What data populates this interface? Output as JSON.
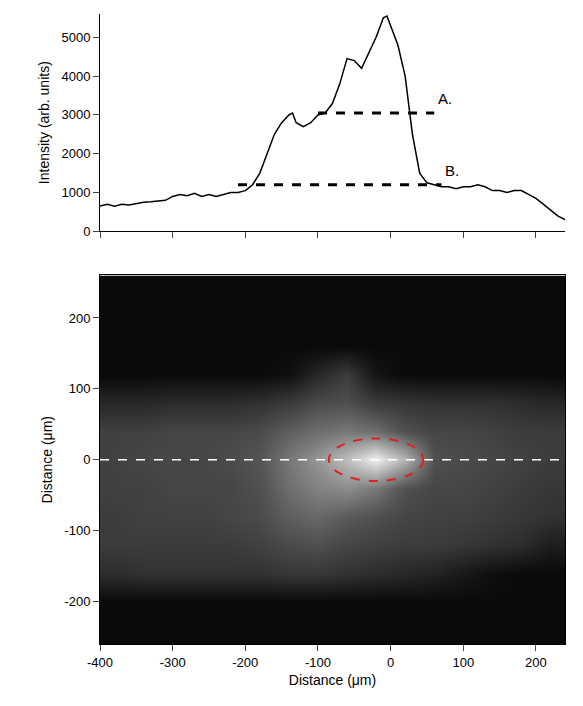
{
  "chart_data": [
    {
      "type": "line",
      "ylabel": "Intensity (arb. units)",
      "xlim": [
        -400,
        240
      ],
      "xticks": [
        -400,
        -300,
        -200,
        -100,
        0,
        100,
        200
      ],
      "ylim": [
        0,
        5600
      ],
      "yticks": [
        0,
        1000,
        2000,
        3000,
        4000,
        5000
      ],
      "tick_labels": "y",
      "x": [
        -400,
        -390,
        -380,
        -370,
        -360,
        -350,
        -340,
        -330,
        -320,
        -310,
        -300,
        -290,
        -280,
        -270,
        -260,
        -250,
        -240,
        -230,
        -220,
        -210,
        -200,
        -190,
        -180,
        -170,
        -160,
        -150,
        -140,
        -135,
        -130,
        -120,
        -110,
        -100,
        -90,
        -80,
        -70,
        -60,
        -50,
        -40,
        -30,
        -20,
        -10,
        -5,
        0,
        10,
        20,
        30,
        40,
        50,
        60,
        70,
        80,
        90,
        100,
        110,
        120,
        130,
        140,
        150,
        160,
        170,
        180,
        190,
        200,
        210,
        220,
        230,
        240
      ],
      "series": [
        {
          "color": "#000000",
          "line_style": "solid",
          "values": [
            650,
            700,
            650,
            700,
            680,
            720,
            750,
            760,
            780,
            800,
            900,
            950,
            920,
            980,
            900,
            950,
            900,
            950,
            1000,
            1000,
            1050,
            1200,
            1500,
            2000,
            2500,
            2800,
            3000,
            3050,
            2800,
            2700,
            2800,
            3000,
            3050,
            3300,
            3800,
            4450,
            4400,
            4200,
            4600,
            5000,
            5500,
            5550,
            5300,
            4800,
            4000,
            2500,
            1500,
            1250,
            1200,
            1150,
            1150,
            1100,
            1150,
            1150,
            1200,
            1150,
            1050,
            1050,
            1000,
            1050,
            1050,
            950,
            850,
            700,
            550,
            400,
            300
          ]
        },
        {
          "name": "A.",
          "color": "#000000",
          "line_style": "dash",
          "x": [
            -100,
            60
          ],
          "values": [
            3050,
            3050
          ]
        },
        {
          "name": "B.",
          "color": "#000000",
          "line_style": "dash",
          "x": [
            -210,
            70
          ],
          "values": [
            1200,
            1200
          ]
        }
      ]
    },
    {
      "type": "heatmap",
      "xlabel": "Distance (μm)",
      "ylabel": "Distance (μm)",
      "color": "gray",
      "xlim": [
        -400,
        240
      ],
      "xticks": [
        -400,
        -300,
        -200,
        -100,
        0,
        100,
        200
      ],
      "ylim": [
        -260,
        260
      ],
      "yticks": [
        -200,
        -100,
        0,
        100,
        200
      ],
      "zlim": [
        0,
        255
      ],
      "x": [
        -380,
        -340,
        -300,
        -260,
        -220,
        -180,
        -140,
        -100,
        -60,
        -20,
        20,
        60,
        100,
        140,
        180,
        220
      ],
      "y": [
        -240,
        -200,
        -160,
        -120,
        -80,
        -40,
        0,
        40,
        80,
        120,
        160,
        200,
        240
      ],
      "cells": [
        [
          10,
          10,
          10,
          10,
          10,
          10,
          10,
          10,
          10,
          10,
          10,
          10,
          10,
          10,
          10,
          10
        ],
        [
          10,
          10,
          10,
          10,
          10,
          10,
          10,
          10,
          10,
          10,
          10,
          10,
          10,
          10,
          10,
          10
        ],
        [
          45,
          50,
          50,
          50,
          50,
          50,
          55,
          55,
          50,
          45,
          40,
          35,
          25,
          15,
          10,
          10
        ],
        [
          60,
          60,
          60,
          60,
          60,
          65,
          75,
          80,
          70,
          65,
          60,
          60,
          55,
          50,
          45,
          30
        ],
        [
          60,
          65,
          65,
          65,
          70,
          75,
          95,
          105,
          90,
          80,
          70,
          65,
          65,
          60,
          55,
          50
        ],
        [
          65,
          65,
          70,
          70,
          70,
          80,
          110,
          130,
          140,
          120,
          80,
          70,
          70,
          65,
          60,
          55
        ],
        [
          65,
          70,
          70,
          70,
          75,
          85,
          120,
          150,
          190,
          240,
          180,
          80,
          75,
          70,
          65,
          60
        ],
        [
          65,
          65,
          70,
          70,
          70,
          75,
          95,
          110,
          120,
          110,
          80,
          70,
          70,
          65,
          60,
          60
        ],
        [
          40,
          40,
          45,
          45,
          45,
          50,
          60,
          75,
          80,
          60,
          55,
          50,
          50,
          50,
          45,
          40
        ],
        [
          10,
          10,
          10,
          10,
          10,
          10,
          15,
          40,
          60,
          20,
          10,
          10,
          10,
          10,
          10,
          10
        ],
        [
          10,
          10,
          10,
          10,
          10,
          10,
          10,
          10,
          10,
          10,
          10,
          10,
          10,
          10,
          10,
          10
        ],
        [
          10,
          10,
          10,
          10,
          10,
          10,
          10,
          10,
          10,
          10,
          10,
          10,
          10,
          10,
          10,
          10
        ],
        [
          10,
          10,
          10,
          10,
          10,
          10,
          10,
          10,
          10,
          10,
          10,
          10,
          10,
          10,
          10,
          10
        ]
      ],
      "hline": {
        "y": 0,
        "color": "#ffffff",
        "line_style": "dash"
      },
      "ellipse": {
        "x": [
          -85,
          45
        ],
        "y": [
          -30,
          30
        ],
        "color": "#e02020",
        "line_style": "dash"
      }
    }
  ]
}
